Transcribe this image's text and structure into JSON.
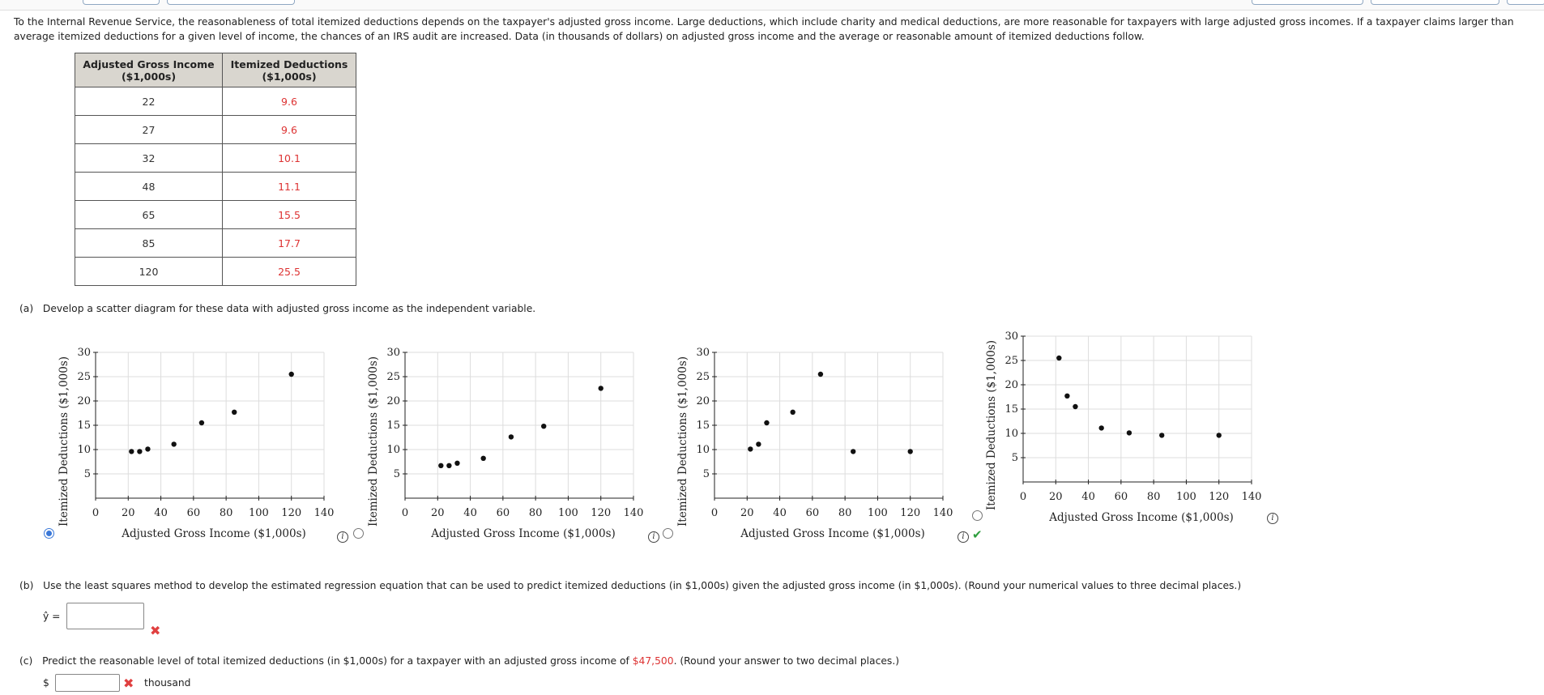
{
  "intro_text": "To the Internal Revenue Service, the reasonableness of total itemized deductions depends on the taxpayer's adjusted gross income. Large deductions, which include charity and medical deductions, are more reasonable for taxpayers with large adjusted gross incomes. If a taxpayer claims larger than average itemized deductions for a given level of income, the chances of an IRS audit are increased. Data (in thousands of dollars) on adjusted gross income and the average or reasonable amount of itemized deductions follow.",
  "table": {
    "headers": [
      "Adjusted Gross Income ($1,000s)",
      "Itemized Deductions ($1,000s)"
    ],
    "rows": [
      [
        "22",
        "9.6"
      ],
      [
        "27",
        "9.6"
      ],
      [
        "32",
        "10.1"
      ],
      [
        "48",
        "11.1"
      ],
      [
        "65",
        "15.5"
      ],
      [
        "85",
        "17.7"
      ],
      [
        "120",
        "25.5"
      ]
    ]
  },
  "part_a": {
    "label": "(a)",
    "text": "Develop a scatter diagram for these data with adjusted gross income as the independent variable."
  },
  "part_b": {
    "label": "(b)",
    "text": "Use the least squares method to develop the estimated regression equation that can be used to predict itemized deductions (in $1,000s) given the adjusted gross income (in $1,000s). (Round your numerical values to three decimal places.)",
    "yhat_label": "ŷ =",
    "answer_value": ""
  },
  "part_c": {
    "label": "(c)",
    "text_before": "Predict the reasonable level of total itemized deductions (in $1,000s) for a taxpayer with an adjusted gross income of ",
    "highlight": "$47,500",
    "text_after": ". (Round your answer to two decimal places.)",
    "currency": "$",
    "unit": "thousand",
    "answer_value": ""
  },
  "icons": {
    "info": "i",
    "check": "✔",
    "wrong": "✖"
  },
  "colors": {
    "accent": "#3a78d8",
    "wrong": "#e04040",
    "correct": "#2e9e3e",
    "highlight": "#d33333"
  },
  "chart_data": [
    {
      "type": "scatter",
      "xlabel": "Adjusted Gross Income ($1,000s)",
      "ylabel": "Itemized Deductions ($1,000s)",
      "xlim": [
        0,
        140
      ],
      "ylim": [
        0,
        30
      ],
      "xticks": [
        0,
        20,
        40,
        60,
        80,
        100,
        120,
        140
      ],
      "yticks": [
        5,
        10,
        15,
        20,
        25,
        30
      ],
      "grid": true,
      "x": [
        22,
        27,
        32,
        48,
        65,
        85,
        120
      ],
      "y": [
        9.6,
        9.6,
        10.1,
        11.1,
        15.5,
        17.7,
        25.5
      ],
      "selected": true
    },
    {
      "type": "scatter",
      "xlabel": "Adjusted Gross Income ($1,000s)",
      "ylabel": "Itemized Deductions ($1,000s)",
      "xlim": [
        0,
        140
      ],
      "ylim": [
        0,
        30
      ],
      "xticks": [
        0,
        20,
        40,
        60,
        80,
        100,
        120,
        140
      ],
      "yticks": [
        5,
        10,
        15,
        20,
        25,
        30
      ],
      "grid": true,
      "x": [
        22,
        27,
        32,
        48,
        65,
        85,
        120
      ],
      "y": [
        6.7,
        6.7,
        7.2,
        8.2,
        12.6,
        14.8,
        22.6
      ],
      "selected": false
    },
    {
      "type": "scatter",
      "xlabel": "Adjusted Gross Income ($1,000s)",
      "ylabel": "Itemized Deductions ($1,000s)",
      "xlim": [
        0,
        140
      ],
      "ylim": [
        0,
        30
      ],
      "xticks": [
        0,
        20,
        40,
        60,
        80,
        100,
        120,
        140
      ],
      "yticks": [
        5,
        10,
        15,
        20,
        25,
        30
      ],
      "grid": true,
      "x": [
        22,
        27,
        32,
        48,
        65,
        85,
        120
      ],
      "y": [
        10.1,
        11.1,
        15.5,
        17.7,
        25.5,
        9.6,
        9.6
      ],
      "selected": false,
      "checked": true
    },
    {
      "type": "scatter",
      "xlabel": "Adjusted Gross Income ($1,000s)",
      "ylabel": "Itemized Deductions ($1,000s)",
      "xlim": [
        0,
        140
      ],
      "ylim": [
        0,
        30
      ],
      "xticks": [
        0,
        20,
        40,
        60,
        80,
        100,
        120,
        140
      ],
      "yticks": [
        5,
        10,
        15,
        20,
        25,
        30
      ],
      "grid": true,
      "x": [
        22,
        27,
        32,
        48,
        65,
        85,
        120
      ],
      "y": [
        25.5,
        17.7,
        15.5,
        11.1,
        10.1,
        9.6,
        9.6
      ],
      "selected": false
    }
  ]
}
